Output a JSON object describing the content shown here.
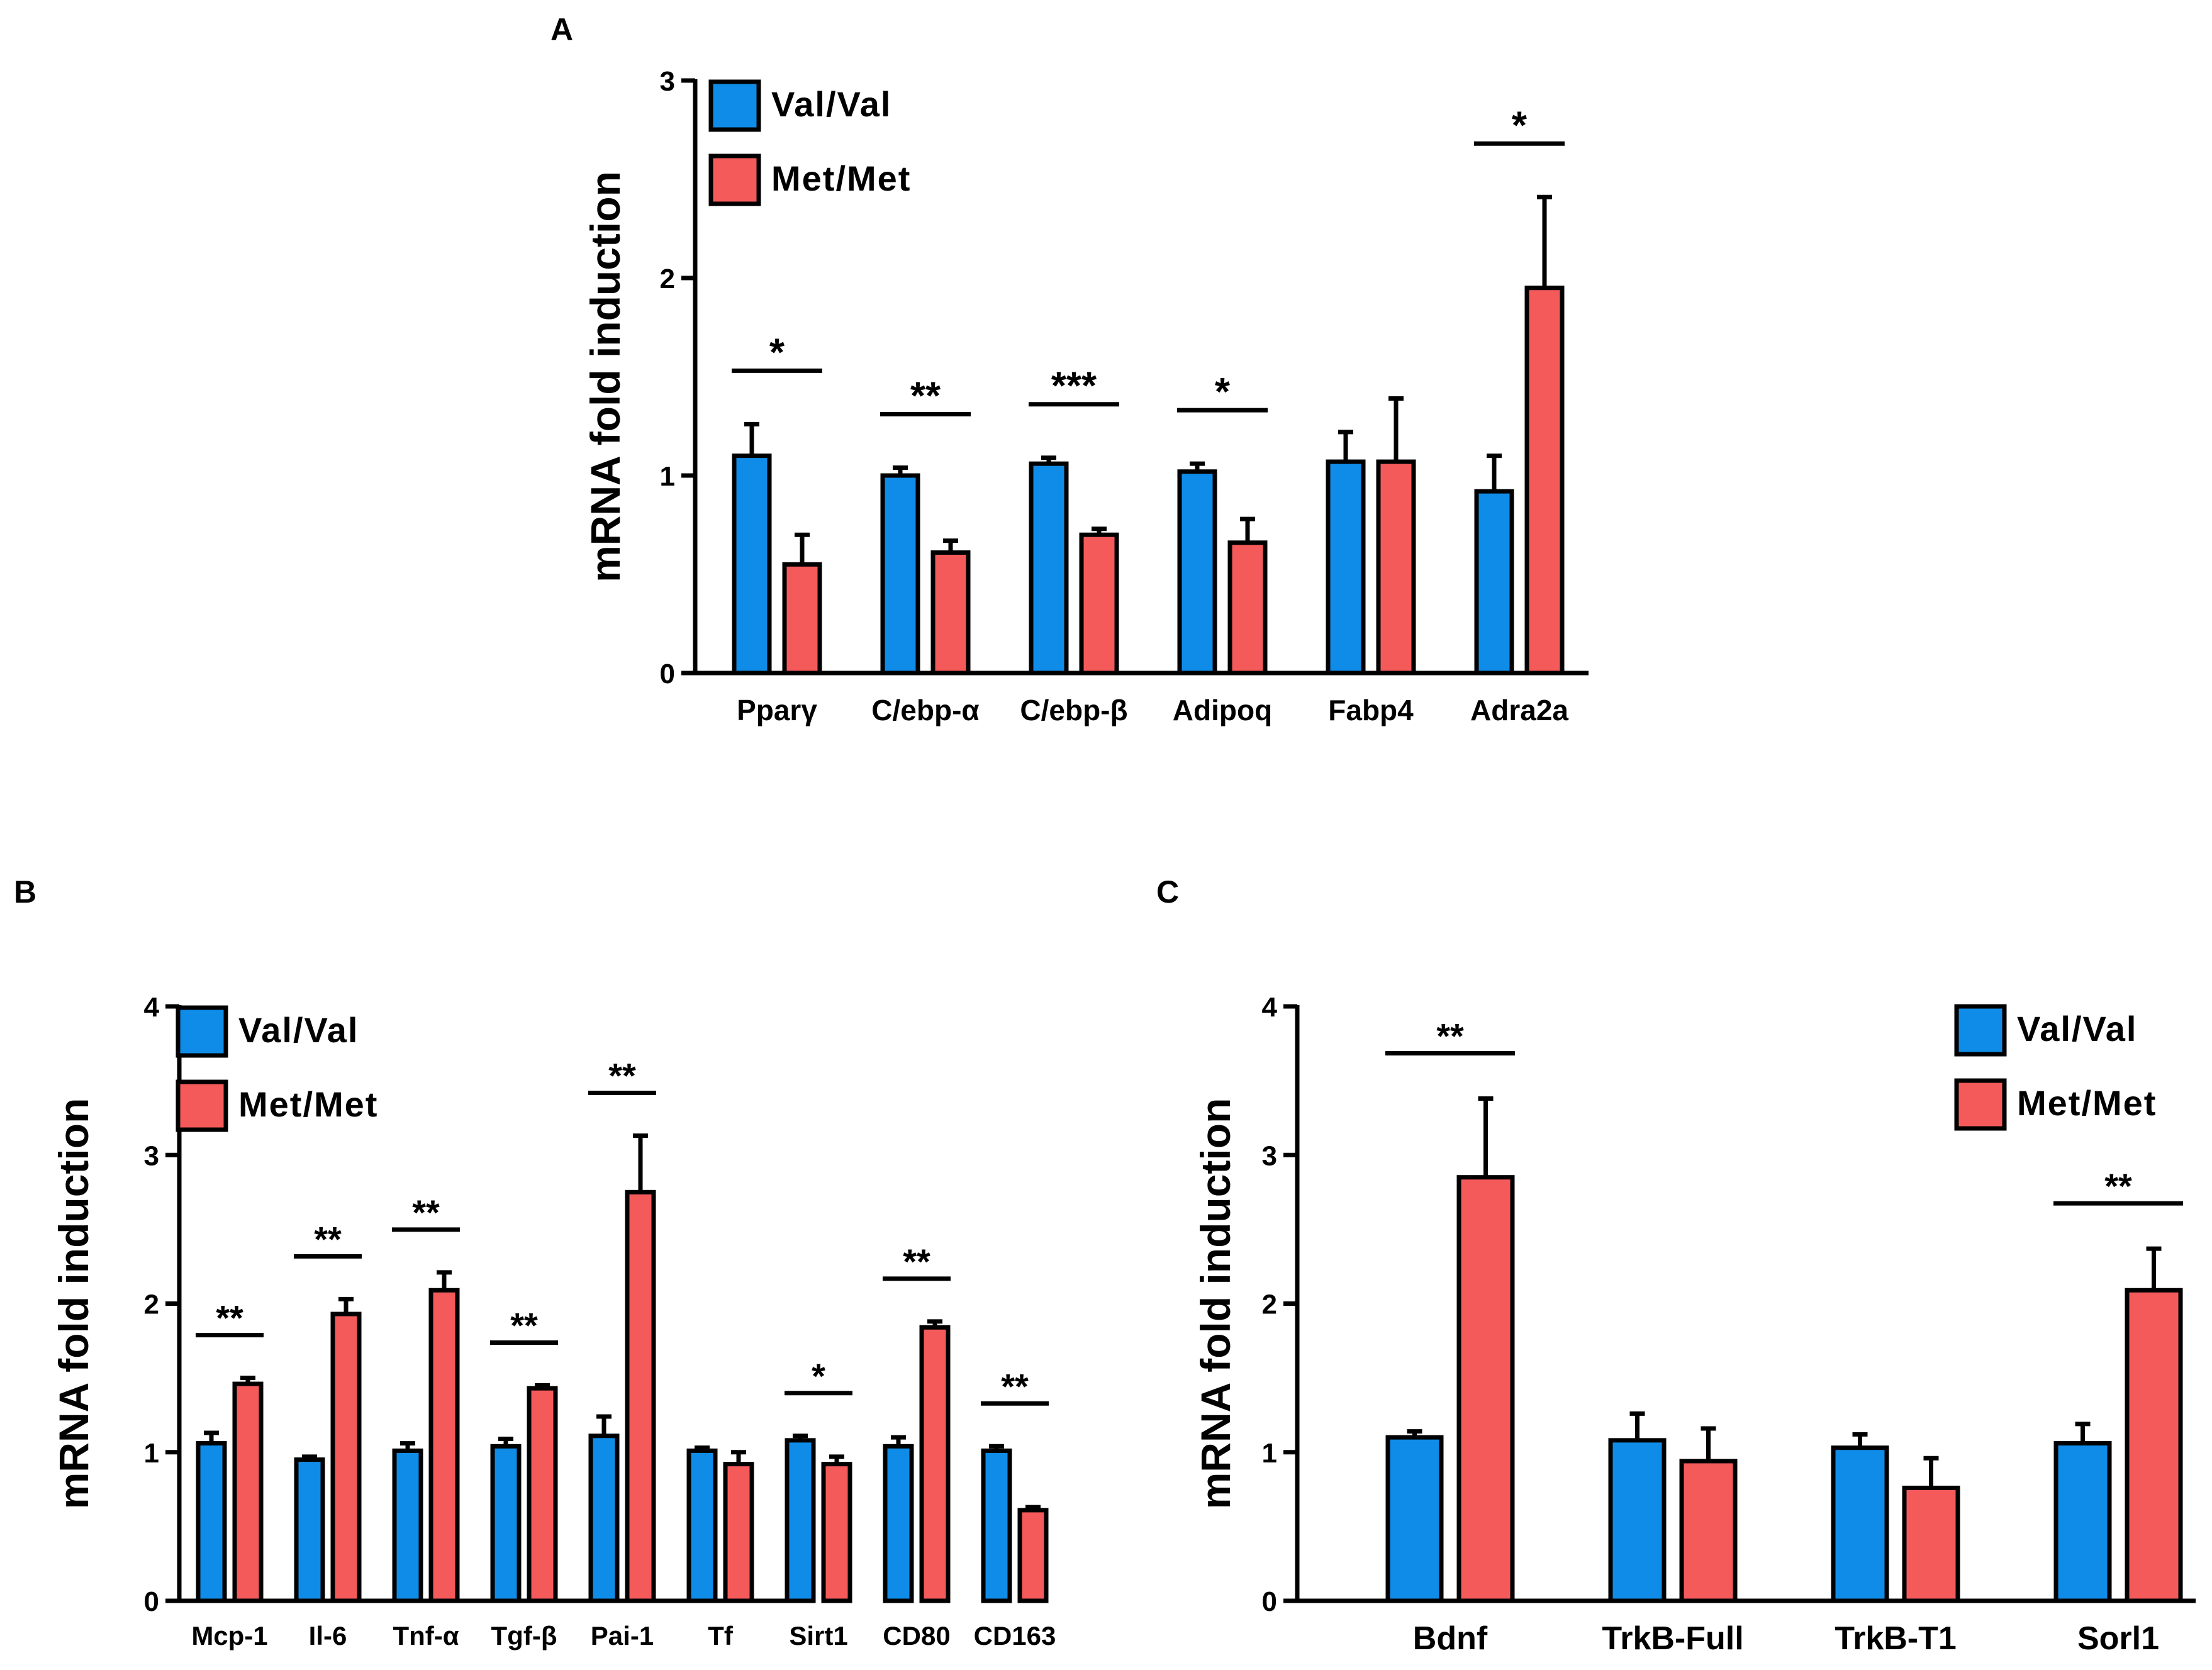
{
  "colors": {
    "val": "#0f8ce8",
    "met": "#f45a5a",
    "axis": "#000000"
  },
  "chart_data": [
    {
      "panel": "A",
      "type": "bar",
      "ylabel": "mRNA fold induction",
      "ylim": [
        0,
        3
      ],
      "yticks": [
        "0",
        "1",
        "2",
        "3"
      ],
      "legend_position": "top-left",
      "categories": [
        "Pparγ",
        "C/ebp-α",
        "C/ebp-β",
        "Adipoq",
        "Fabp4",
        "Adra2a"
      ],
      "series": [
        {
          "name": "Val/Val",
          "values": [
            1.1,
            1.0,
            1.06,
            1.02,
            1.07,
            0.92
          ],
          "errors": [
            0.16,
            0.04,
            0.03,
            0.04,
            0.15,
            0.18
          ]
        },
        {
          "name": "Met/Met",
          "values": [
            0.55,
            0.61,
            0.7,
            0.66,
            1.07,
            1.95
          ],
          "errors": [
            0.15,
            0.06,
            0.03,
            0.12,
            0.32,
            0.46
          ]
        }
      ],
      "significance": [
        "*",
        "**",
        "***",
        "*",
        "",
        "*"
      ]
    },
    {
      "panel": "B",
      "type": "bar",
      "ylabel": "mRNA fold induction",
      "ylim": [
        0,
        4
      ],
      "yticks": [
        "0",
        "1",
        "2",
        "3",
        "4"
      ],
      "legend_position": "top-left",
      "categories": [
        "Mcp-1",
        "Il-6",
        "Tnf-α",
        "Tgf-β",
        "Pai-1",
        "Tf",
        "Sirt1",
        "CD80",
        "CD163"
      ],
      "series": [
        {
          "name": "Val/Val",
          "values": [
            1.06,
            0.95,
            1.01,
            1.04,
            1.11,
            1.01,
            1.08,
            1.04,
            1.01
          ],
          "errors": [
            0.07,
            0.02,
            0.05,
            0.05,
            0.13,
            0.02,
            0.03,
            0.06,
            0.03
          ]
        },
        {
          "name": "Met/Met",
          "values": [
            1.46,
            1.93,
            2.09,
            1.43,
            2.75,
            0.92,
            0.92,
            1.84,
            0.61
          ],
          "errors": [
            0.04,
            0.1,
            0.12,
            0.02,
            0.38,
            0.08,
            0.05,
            0.04,
            0.02
          ]
        }
      ],
      "significance": [
        "**",
        "**",
        "**",
        "**",
        "**",
        "",
        "*",
        "**",
        "**"
      ]
    },
    {
      "panel": "C",
      "type": "bar",
      "ylabel": "mRNA fold induction",
      "ylim": [
        0,
        4
      ],
      "yticks": [
        "0",
        "1",
        "2",
        "3",
        "4"
      ],
      "legend_position": "top-right",
      "categories": [
        "Bdnf",
        "TrkB-Full",
        "TrkB-T1",
        "Sorl1"
      ],
      "series": [
        {
          "name": "Val/Val",
          "values": [
            1.1,
            1.08,
            1.03,
            1.06
          ],
          "errors": [
            0.04,
            0.18,
            0.09,
            0.13
          ]
        },
        {
          "name": "Met/Met",
          "values": [
            2.85,
            0.94,
            0.76,
            2.09
          ],
          "errors": [
            0.53,
            0.22,
            0.2,
            0.28
          ]
        }
      ],
      "significance": [
        "**",
        "",
        "",
        "**"
      ]
    }
  ]
}
